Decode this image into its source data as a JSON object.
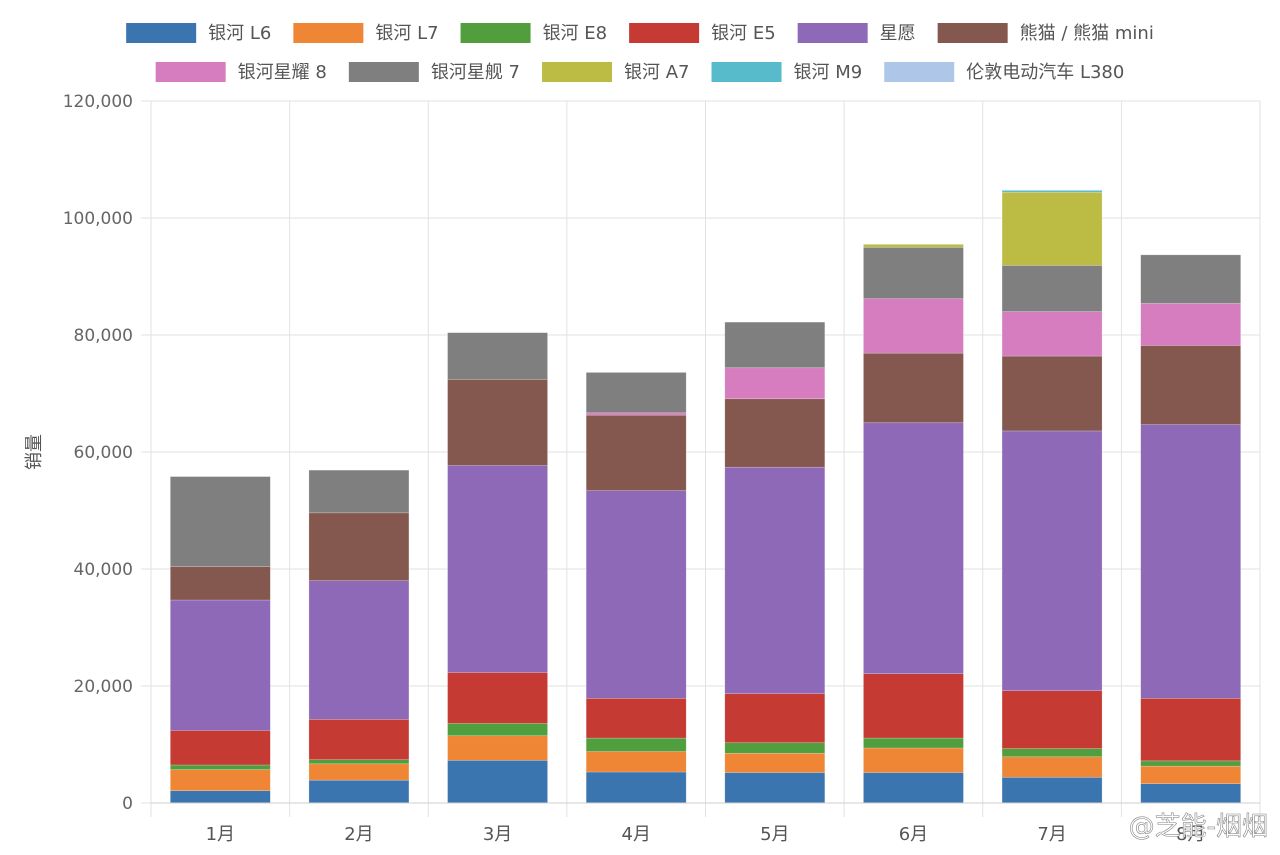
{
  "chart_data": {
    "type": "bar",
    "stacked": true,
    "xlabel": "",
    "ylabel": "销量",
    "ylim": [
      0,
      120000
    ],
    "yticks": [
      0,
      20000,
      40000,
      60000,
      80000,
      100000,
      120000
    ],
    "ytick_labels": [
      "0",
      "20,000",
      "40,000",
      "60,000",
      "80,000",
      "100,000",
      "120,000"
    ],
    "grid": true,
    "legend_position": "top",
    "categories": [
      "1月",
      "2月",
      "3月",
      "4月",
      "5月",
      "6月",
      "7月",
      "8月"
    ],
    "series": [
      {
        "name": "银河 L6",
        "color": "#3b75af",
        "values": [
          2100,
          3900,
          7300,
          5300,
          5200,
          5200,
          4400,
          3300
        ]
      },
      {
        "name": "银河 L7",
        "color": "#ef8636",
        "values": [
          3600,
          2800,
          4200,
          3500,
          3300,
          4200,
          3500,
          3000
        ]
      },
      {
        "name": "银河 E8",
        "color": "#519e3e",
        "values": [
          800,
          700,
          2100,
          2300,
          1800,
          1700,
          1400,
          900
        ]
      },
      {
        "name": "银河 E5",
        "color": "#c53a32",
        "values": [
          5900,
          6900,
          8700,
          6800,
          8400,
          11000,
          9900,
          10700
        ]
      },
      {
        "name": "星愿",
        "color": "#8d69b8",
        "values": [
          22300,
          23700,
          35400,
          35500,
          38700,
          42900,
          44400,
          46800
        ]
      },
      {
        "name": "熊猫 / 熊猫 mini",
        "color": "#84584e",
        "values": [
          5700,
          11600,
          14700,
          12900,
          11700,
          11900,
          12800,
          13500
        ]
      },
      {
        "name": "银河星耀 8",
        "color": "#d57dbf",
        "values": [
          0,
          0,
          0,
          400,
          5300,
          9300,
          7600,
          7200
        ]
      },
      {
        "name": "银河星舰 7",
        "color": "#7f7f7f",
        "values": [
          15400,
          7300,
          8000,
          6900,
          7800,
          8800,
          7900,
          8300
        ]
      },
      {
        "name": "银河 A7",
        "color": "#bcbc45",
        "values": [
          0,
          0,
          0,
          0,
          0,
          500,
          12500,
          0
        ]
      },
      {
        "name": "银河 M9",
        "color": "#58bbcc",
        "values": [
          0,
          0,
          0,
          0,
          0,
          0,
          300,
          0
        ]
      },
      {
        "name": "伦敦电动汽车 L380",
        "color": "#aec7e8",
        "values": [
          0,
          0,
          0,
          0,
          0,
          0,
          100,
          0
        ]
      }
    ]
  },
  "watermark": "@芝能-烟烟"
}
